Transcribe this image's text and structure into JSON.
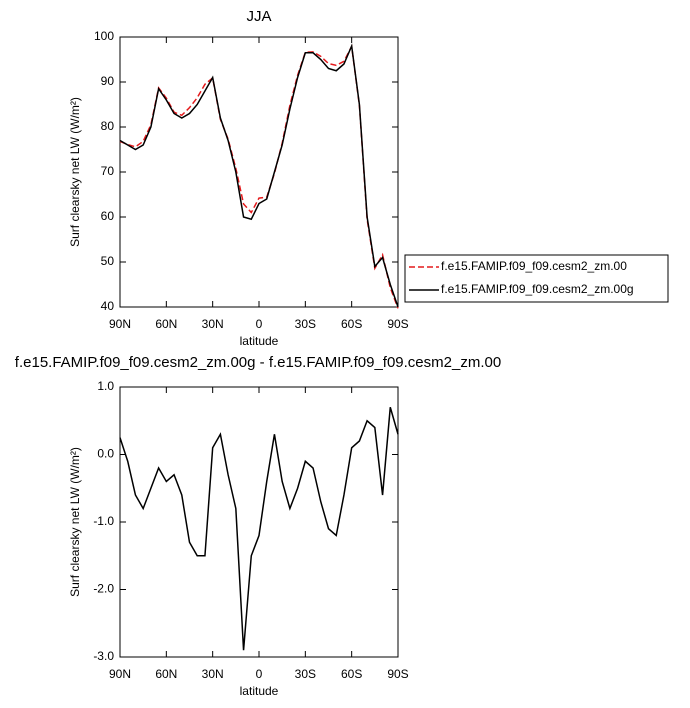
{
  "chart_data": [
    {
      "type": "line",
      "title": "JJA",
      "xlabel": "latitude",
      "ylabel": "Surf clearsky net LW (W/m²)",
      "x": [
        90,
        85,
        80,
        75,
        70,
        65,
        60,
        55,
        50,
        45,
        40,
        35,
        30,
        25,
        20,
        15,
        10,
        5,
        0,
        -5,
        -10,
        -15,
        -20,
        -25,
        -30,
        -35,
        -40,
        -45,
        -50,
        -55,
        -60,
        -65,
        -70,
        -75,
        -80,
        -85,
        -90
      ],
      "series": [
        {
          "name": "f.e15.FAMIP.f09_f09.cesm2_zm.00",
          "color": "#e41a1c",
          "linestyle": "dashed",
          "values": [
            76.8,
            76.1,
            75.6,
            76.8,
            80.5,
            88.7,
            86.4,
            83.3,
            82.6,
            84.3,
            86.5,
            89.5,
            90.9,
            81.7,
            77.3,
            70.8,
            62.9,
            61,
            64.2,
            64.4,
            69.7,
            76.4,
            84.8,
            91.5,
            96.6,
            96.7,
            95.7,
            94.1,
            93.7,
            94.6,
            97.9,
            84.8,
            59.5,
            48.6,
            51.6,
            44.3,
            39.7
          ]
        },
        {
          "name": "f.e15.FAMIP.f09_f09.cesm2_zm.00g",
          "color": "#000000",
          "linestyle": "solid",
          "values": [
            77,
            76,
            75,
            76,
            80,
            88.5,
            86,
            83,
            82,
            83,
            85,
            88,
            91,
            82,
            77,
            70,
            60,
            59.5,
            63,
            64,
            70,
            76,
            84,
            91,
            96.5,
            96.5,
            95,
            93,
            92.5,
            94,
            98,
            85,
            60,
            49,
            51,
            45,
            40
          ]
        }
      ],
      "xlim": [
        90,
        -90
      ],
      "xticks": [
        {
          "value": 90,
          "label": "90N"
        },
        {
          "value": 60,
          "label": "60N"
        },
        {
          "value": 30,
          "label": "30N"
        },
        0,
        {
          "value": -30,
          "label": "30S"
        },
        {
          "value": -60,
          "label": "60S"
        },
        {
          "value": -90,
          "label": "90S"
        }
      ],
      "ylim": [
        40,
        100
      ],
      "yticks": [
        40,
        50,
        60,
        70,
        80,
        90,
        100
      ],
      "legend": "right"
    },
    {
      "type": "line",
      "title": "f.e15.FAMIP.f09_f09.cesm2_zm.00g - f.e15.FAMIP.f09_f09.cesm2_zm.00",
      "xlabel": "latitude",
      "ylabel": "Surf clearsky net LW (W/m²)",
      "x": [
        90,
        85,
        80,
        75,
        70,
        65,
        60,
        55,
        50,
        45,
        40,
        35,
        30,
        25,
        20,
        15,
        10,
        5,
        0,
        -5,
        -10,
        -15,
        -20,
        -25,
        -30,
        -35,
        -40,
        -45,
        -50,
        -55,
        -60,
        -65,
        -70,
        -75,
        -80,
        -85,
        -90
      ],
      "series": [
        {
          "color": "#000000",
          "linestyle": "solid",
          "values": [
            0.25,
            -0.1,
            -0.6,
            -0.8,
            -0.5,
            -0.2,
            -0.4,
            -0.3,
            -0.6,
            -1.3,
            -1.5,
            -1.5,
            0.1,
            0.3,
            -0.3,
            -0.8,
            -2.9,
            -1.5,
            -1.2,
            -0.4,
            0.3,
            -0.4,
            -0.8,
            -0.5,
            -0.1,
            -0.2,
            -0.7,
            -1.1,
            -1.2,
            -0.6,
            0.1,
            0.2,
            0.5,
            0.4,
            -0.6,
            0.7,
            0.3
          ]
        }
      ],
      "xlim": [
        90,
        -90
      ],
      "xticks": [
        {
          "value": 90,
          "label": "90N"
        },
        {
          "value": 60,
          "label": "60N"
        },
        {
          "value": 30,
          "label": "30N"
        },
        0,
        {
          "value": -30,
          "label": "30S"
        },
        {
          "value": -60,
          "label": "60S"
        },
        {
          "value": -90,
          "label": "90S"
        }
      ],
      "ylim": [
        -3,
        1
      ],
      "yticks": [
        {
          "value": -3,
          "label": "-3.0"
        },
        {
          "value": -2,
          "label": "-2.0"
        },
        {
          "value": -1,
          "label": "-1.0"
        },
        {
          "value": 0,
          "label": "0.0"
        },
        {
          "value": 1,
          "label": "1.0"
        }
      ]
    }
  ]
}
